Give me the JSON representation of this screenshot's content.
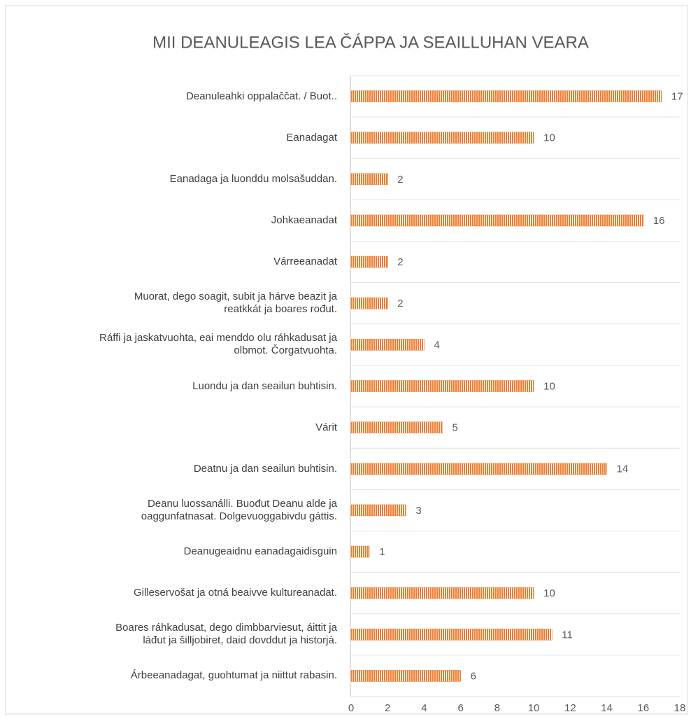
{
  "chart_data": {
    "type": "bar",
    "orientation": "horizontal",
    "title": "MII DEANULEAGIS LEA ČÁPPA JA SEAILLUHAN VEARA",
    "categories": [
      "Deanuleahki oppalaččat. / Buot..",
      "Eanadagat",
      "Eanadaga ja luonddu molsašuddan.",
      "Johkaeanadat",
      "Várreeanadat",
      "Muorat, dego soagit, subit ja hárve beazit ja\nreatkkát ja boares rođut.",
      "Ráffi ja jaskatvuohta, eai menddo olu ráhkadusat ja\nolbmot. Čorgatvuohta.",
      "Luondu ja dan seailun buhtisin.",
      "Várit",
      "Deatnu ja dan seailun buhtisin.",
      "Deanu luossanálli. Buođut Deanu alde ja\noaggunfatnasat. Dolgevuoggabivdu gáttis.",
      "Deanugeaidnu eanadagaidisguin",
      "Gilleservošat ja otná beaivve kultureanadat.",
      "Boares ráhkadusat, dego dimbbarviesut, áittit ja\nláđut ja šilljobiret, daid dovddut ja historjá.",
      "Árbeeanadagat, guohtumat ja niittut rabasin."
    ],
    "values": [
      17,
      10,
      2,
      16,
      2,
      2,
      4,
      10,
      5,
      14,
      3,
      1,
      10,
      11,
      6
    ],
    "color": "#ed7d31",
    "xlim": [
      0,
      18
    ],
    "xticks": [
      0,
      2,
      4,
      6,
      8,
      10,
      12,
      14,
      16,
      18
    ]
  }
}
